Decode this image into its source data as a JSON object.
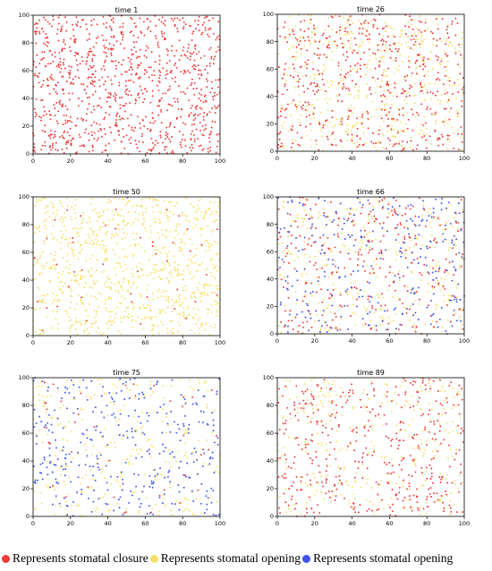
{
  "colors": {
    "closure": "#f0393a",
    "opening_yellow": "#f6e06a",
    "opening_blue": "#3f55e8"
  },
  "legend": [
    {
      "label": "Represents stomatal closure",
      "color": "#f0393a"
    },
    {
      "label": "Represents stomatal opening",
      "color": "#f6e06a"
    },
    {
      "label": "Represents stomatal opening",
      "color": "#3f55e8"
    }
  ],
  "chart_data": [
    {
      "type": "scatter",
      "title": "time 1",
      "xlim": [
        0,
        100
      ],
      "ylim": [
        0,
        100
      ],
      "xticks": [
        "0",
        "20",
        "40",
        "60",
        "80",
        "100"
      ],
      "yticks": [
        "0",
        "20",
        "40",
        "60",
        "80",
        "100"
      ],
      "series": [
        {
          "color": "#f0393a",
          "count": 1000,
          "seed": 11,
          "points": []
        }
      ]
    },
    {
      "type": "scatter",
      "title": "time 26",
      "xlim": [
        0,
        100
      ],
      "ylim": [
        0,
        100
      ],
      "xticks": [
        "0",
        "20",
        "40",
        "60",
        "80",
        "100"
      ],
      "yticks": [
        "0",
        "20",
        "40",
        "60",
        "80",
        "100"
      ],
      "series": [
        {
          "color": "#f6e06a",
          "count": 500,
          "seed": 21,
          "points": []
        },
        {
          "color": "#f0393a",
          "count": 520,
          "seed": 22,
          "points": []
        }
      ]
    },
    {
      "type": "scatter",
      "title": "time 50",
      "xlim": [
        0,
        100
      ],
      "ylim": [
        0,
        100
      ],
      "xticks": [
        "0",
        "20",
        "40",
        "60",
        "80",
        "100"
      ],
      "yticks": [
        "0",
        "20",
        "40",
        "60",
        "80",
        "100"
      ],
      "series": [
        {
          "color": "#f6e06a",
          "count": 950,
          "seed": 31,
          "points": []
        },
        {
          "color": "#f0393a",
          "count": 45,
          "seed": 32,
          "points": []
        }
      ]
    },
    {
      "type": "scatter",
      "title": "time 66",
      "xlim": [
        0,
        100
      ],
      "ylim": [
        0,
        100
      ],
      "xticks": [
        "0",
        "20",
        "40",
        "60",
        "80",
        "100"
      ],
      "yticks": [
        "0",
        "20",
        "40",
        "60",
        "80",
        "100"
      ],
      "series": [
        {
          "color": "#f6e06a",
          "count": 320,
          "seed": 41,
          "points": []
        },
        {
          "color": "#f0393a",
          "count": 300,
          "seed": 42,
          "points": []
        },
        {
          "color": "#3f55e8",
          "count": 280,
          "seed": 43,
          "points": []
        }
      ]
    },
    {
      "type": "scatter",
      "title": "time 75",
      "xlim": [
        0,
        100
      ],
      "ylim": [
        0,
        100
      ],
      "xticks": [
        "0",
        "20",
        "40",
        "60",
        "80",
        "100"
      ],
      "yticks": [
        "0",
        "20",
        "40",
        "60",
        "80",
        "100"
      ],
      "series": [
        {
          "color": "#f6e06a",
          "count": 300,
          "seed": 51,
          "points": []
        },
        {
          "color": "#3f55e8",
          "count": 330,
          "seed": 52,
          "points": []
        },
        {
          "color": "#f0393a",
          "count": 40,
          "seed": 53,
          "points": []
        }
      ]
    },
    {
      "type": "scatter",
      "title": "time 89",
      "xlim": [
        0,
        100
      ],
      "ylim": [
        0,
        100
      ],
      "xticks": [
        "0",
        "20",
        "40",
        "60",
        "80",
        "100"
      ],
      "yticks": [
        "0",
        "20",
        "40",
        "60",
        "80",
        "100"
      ],
      "series": [
        {
          "color": "#f6e06a",
          "count": 300,
          "seed": 61,
          "points": []
        },
        {
          "color": "#f0393a",
          "count": 420,
          "seed": 62,
          "points": []
        }
      ]
    }
  ]
}
